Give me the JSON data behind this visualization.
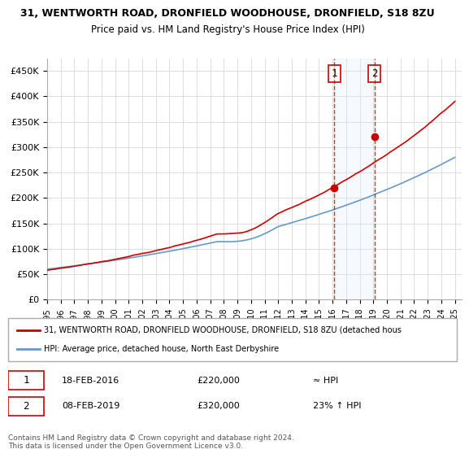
{
  "title": "31, WENTWORTH ROAD, DRONFIELD WOODHOUSE, DRONFIELD, S18 8ZU",
  "subtitle": "Price paid vs. HM Land Registry's House Price Index (HPI)",
  "ylabel_ticks": [
    0,
    50000,
    100000,
    150000,
    200000,
    250000,
    300000,
    350000,
    400000,
    450000
  ],
  "ylabel_labels": [
    "£0",
    "£50K",
    "£100K",
    "£150K",
    "£200K",
    "£250K",
    "£300K",
    "£350K",
    "£400K",
    "£450K"
  ],
  "ylim": [
    0,
    475000
  ],
  "xlim_start": 1995.0,
  "xlim_end": 2025.5,
  "xtick_years": [
    1995,
    1996,
    1997,
    1998,
    1999,
    2000,
    2001,
    2002,
    2003,
    2004,
    2005,
    2006,
    2007,
    2008,
    2009,
    2010,
    2011,
    2012,
    2013,
    2014,
    2015,
    2016,
    2017,
    2018,
    2019,
    2020,
    2021,
    2022,
    2023,
    2024,
    2025
  ],
  "purchase1_x": 2016.12,
  "purchase1_y": 220000,
  "purchase1_label": "1",
  "purchase2_x": 2019.1,
  "purchase2_y": 320000,
  "purchase2_label": "2",
  "shade_start": 2016.12,
  "shade_end": 2019.1,
  "line_color_house": "#cc0000",
  "line_color_hpi": "#6699cc",
  "marker_color": "#cc0000",
  "dashed_line_color": "#cc0000",
  "shade_color": "#ddeeff",
  "legend1_text": "31, WENTWORTH ROAD, DRONFIELD WOODHOUSE, DRONFIELD, S18 8ZU (detached hous",
  "legend2_text": "HPI: Average price, detached house, North East Derbyshire",
  "annotation1": "18-FEB-2016    £220,000              ≈ HPI",
  "annotation2": "08-FEB-2019    £320,000         23% ↑ HPI",
  "footer": "Contains HM Land Registry data © Crown copyright and database right 2024.\nThis data is licensed under the Open Government Licence v3.0.",
  "bg_color": "#ffffff",
  "grid_color": "#dddddd"
}
